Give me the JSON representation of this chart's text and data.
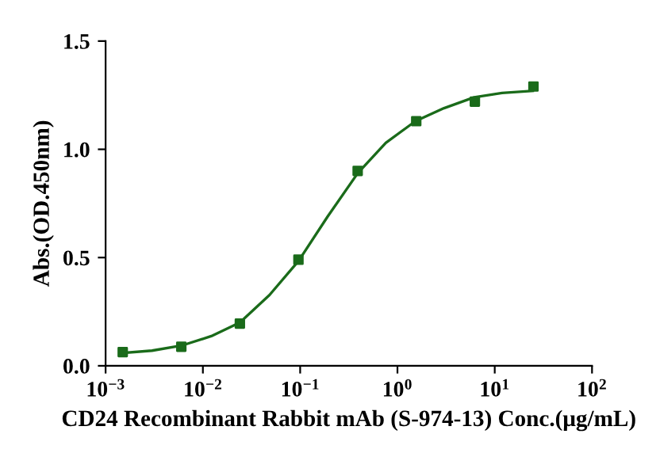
{
  "chart_data": {
    "type": "scatter",
    "xlabel": "CD24 Recombinant Rabbit mAb (S-974-13) Conc.(μg/mL)",
    "ylabel": "Abs.(OD.450nm)",
    "log": "x",
    "grid": false,
    "legend": false,
    "series": [
      {
        "marker": "square",
        "color": "#1a6b1a",
        "x": [
          0.0015,
          0.006,
          0.024,
          0.096,
          0.39,
          1.56,
          6.25,
          25
        ],
        "values": [
          0.063,
          0.088,
          0.195,
          0.49,
          0.9,
          1.13,
          1.22,
          1.29
        ]
      },
      {
        "type": "line",
        "marker": "none",
        "color": "#1a6b1a",
        "x": [
          0.0015,
          0.003,
          0.006,
          0.0122,
          0.024,
          0.0484,
          0.0964,
          0.192,
          0.391,
          0.759,
          1.53,
          3.01,
          6.14,
          11.9,
          24.6
        ],
        "values": [
          0.059,
          0.07,
          0.093,
          0.137,
          0.2,
          0.327,
          0.485,
          0.69,
          0.89,
          1.03,
          1.13,
          1.19,
          1.24,
          1.26,
          1.27
        ]
      }
    ],
    "xlim": [
      0.001,
      100
    ],
    "xticks": [
      {
        "value": 0.001,
        "label": "10$^{−3}$"
      },
      {
        "value": 0.01,
        "label": "10$^{−2}$"
      },
      {
        "value": 0.1,
        "label": "10$^{−1}$"
      },
      {
        "value": 1,
        "label": "10$^{0}$"
      },
      {
        "value": 10,
        "label": "10$^{1}$"
      },
      {
        "value": 100,
        "label": "10$^{2}$"
      }
    ],
    "ylim": [
      0,
      1.5
    ],
    "yticks": [
      {
        "value": 0,
        "label": "0.0"
      },
      0.5,
      {
        "value": 1,
        "label": "1.0"
      },
      1.5
    ]
  }
}
